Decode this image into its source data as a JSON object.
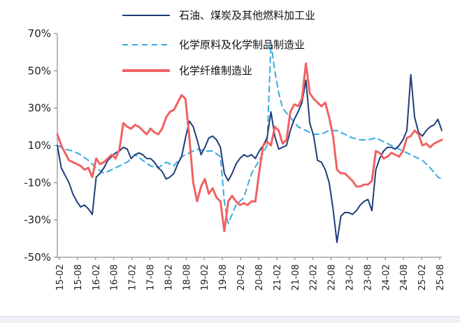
{
  "chart_data": {
    "type": "line",
    "title": "",
    "xlabel": "",
    "ylabel": "",
    "ylim": [
      -50,
      70
    ],
    "y_ticks": [
      "70%",
      "50%",
      "30%",
      "10%",
      "-10%",
      "-30%",
      "-50%"
    ],
    "y_tick_values": [
      70,
      50,
      30,
      10,
      -10,
      -30,
      -50
    ],
    "x_ticks": [
      "15-02",
      "15-08",
      "16-02",
      "16-08",
      "17-02",
      "17-08",
      "18-02",
      "18-08",
      "19-02",
      "19-08",
      "20-02",
      "20-08",
      "21-02",
      "21-08",
      "22-02",
      "22-08",
      "23-02",
      "23-08",
      "24-02",
      "24-08",
      "25-02",
      "25-08"
    ],
    "grid": false,
    "legend_position": "top",
    "series": [
      {
        "name": "石油、煤炭及其他燃料加工业",
        "color": "#1f3d7a",
        "dash": "solid",
        "points": [
          [
            0,
            10
          ],
          [
            1,
            -2
          ],
          [
            2,
            -6
          ],
          [
            3,
            -10
          ],
          [
            4,
            -16
          ],
          [
            5,
            -20
          ],
          [
            6,
            -23
          ],
          [
            7,
            -22
          ],
          [
            8,
            -24
          ],
          [
            9,
            -27
          ],
          [
            10,
            -7
          ],
          [
            11,
            -5
          ],
          [
            12,
            -2
          ],
          [
            13,
            2
          ],
          [
            14,
            4
          ],
          [
            15,
            6
          ],
          [
            16,
            7
          ],
          [
            17,
            9
          ],
          [
            18,
            8
          ],
          [
            19,
            3
          ],
          [
            20,
            5
          ],
          [
            21,
            6
          ],
          [
            22,
            5
          ],
          [
            23,
            3
          ],
          [
            24,
            3
          ],
          [
            25,
            1
          ],
          [
            26,
            -2
          ],
          [
            27,
            -4
          ],
          [
            28,
            -8
          ],
          [
            29,
            -7
          ],
          [
            30,
            -5
          ],
          [
            31,
            0
          ],
          [
            32,
            4
          ],
          [
            33,
            14
          ],
          [
            34,
            23
          ],
          [
            35,
            20
          ],
          [
            36,
            13
          ],
          [
            37,
            5
          ],
          [
            38,
            9
          ],
          [
            39,
            14
          ],
          [
            40,
            15
          ],
          [
            41,
            13
          ],
          [
            42,
            9
          ],
          [
            43,
            -5
          ],
          [
            44,
            -9
          ],
          [
            45,
            -5
          ],
          [
            46,
            0
          ],
          [
            47,
            3
          ],
          [
            48,
            5
          ],
          [
            49,
            4
          ],
          [
            50,
            5
          ],
          [
            51,
            3
          ],
          [
            52,
            7
          ],
          [
            53,
            10
          ],
          [
            54,
            14
          ],
          [
            55,
            28
          ],
          [
            56,
            15
          ],
          [
            57,
            8
          ],
          [
            58,
            9
          ],
          [
            59,
            10
          ],
          [
            60,
            18
          ],
          [
            61,
            24
          ],
          [
            62,
            28
          ],
          [
            63,
            33
          ],
          [
            64,
            45
          ],
          [
            65,
            22
          ],
          [
            66,
            15
          ],
          [
            67,
            2
          ],
          [
            68,
            1
          ],
          [
            69,
            -3
          ],
          [
            70,
            -10
          ],
          [
            71,
            -24
          ],
          [
            72,
            -42
          ],
          [
            73,
            -28
          ],
          [
            74,
            -26
          ],
          [
            75,
            -26
          ],
          [
            76,
            -27
          ],
          [
            77,
            -25
          ],
          [
            78,
            -22
          ],
          [
            79,
            -20
          ],
          [
            80,
            -19
          ],
          [
            81,
            -25
          ],
          [
            82,
            -3
          ],
          [
            83,
            3
          ],
          [
            84,
            7
          ],
          [
            85,
            9
          ],
          [
            86,
            9
          ],
          [
            87,
            8
          ],
          [
            88,
            10
          ],
          [
            89,
            13
          ],
          [
            90,
            18
          ],
          [
            91,
            48
          ],
          [
            92,
            25
          ],
          [
            93,
            17
          ],
          [
            94,
            15
          ],
          [
            95,
            18
          ],
          [
            96,
            20
          ],
          [
            97,
            21
          ],
          [
            98,
            24
          ],
          [
            99,
            18
          ]
        ]
      },
      {
        "name": "化学原料及化学制品制造业",
        "color": "#3aa9e0",
        "dash": "dashed",
        "points": [
          [
            0,
            10
          ],
          [
            2,
            8
          ],
          [
            4,
            7
          ],
          [
            6,
            5
          ],
          [
            8,
            2
          ],
          [
            10,
            -2
          ],
          [
            12,
            -5
          ],
          [
            14,
            -3
          ],
          [
            16,
            -1
          ],
          [
            18,
            1
          ],
          [
            20,
            5
          ],
          [
            22,
            2
          ],
          [
            24,
            -1
          ],
          [
            26,
            -2
          ],
          [
            28,
            1
          ],
          [
            30,
            -1
          ],
          [
            32,
            4
          ],
          [
            34,
            6
          ],
          [
            36,
            8
          ],
          [
            38,
            7
          ],
          [
            40,
            7
          ],
          [
            42,
            4
          ],
          [
            43,
            -20
          ],
          [
            44,
            -32
          ],
          [
            46,
            -22
          ],
          [
            48,
            -18
          ],
          [
            50,
            -5
          ],
          [
            52,
            2
          ],
          [
            54,
            10
          ],
          [
            55,
            65
          ],
          [
            56,
            50
          ],
          [
            57,
            38
          ],
          [
            58,
            30
          ],
          [
            60,
            25
          ],
          [
            62,
            20
          ],
          [
            64,
            18
          ],
          [
            66,
            16
          ],
          [
            68,
            16
          ],
          [
            70,
            18
          ],
          [
            72,
            18
          ],
          [
            74,
            16
          ],
          [
            76,
            14
          ],
          [
            78,
            13
          ],
          [
            80,
            13
          ],
          [
            82,
            14
          ],
          [
            84,
            12
          ],
          [
            86,
            10
          ],
          [
            88,
            8
          ],
          [
            90,
            6
          ],
          [
            92,
            4
          ],
          [
            94,
            2
          ],
          [
            96,
            -2
          ],
          [
            98,
            -7
          ],
          [
            99,
            -8
          ]
        ]
      },
      {
        "name": "化学纤维制造业",
        "color": "#f06262",
        "dash": "solid",
        "points": [
          [
            0,
            16
          ],
          [
            1,
            10
          ],
          [
            2,
            6
          ],
          [
            3,
            2
          ],
          [
            4,
            1
          ],
          [
            5,
            0
          ],
          [
            6,
            -1
          ],
          [
            7,
            -3
          ],
          [
            8,
            -2
          ],
          [
            9,
            -7
          ],
          [
            10,
            3
          ],
          [
            11,
            0
          ],
          [
            12,
            1
          ],
          [
            13,
            3
          ],
          [
            14,
            5
          ],
          [
            15,
            3
          ],
          [
            16,
            8
          ],
          [
            17,
            22
          ],
          [
            18,
            20
          ],
          [
            19,
            19
          ],
          [
            20,
            21
          ],
          [
            21,
            20
          ],
          [
            22,
            18
          ],
          [
            23,
            16
          ],
          [
            24,
            19
          ],
          [
            25,
            17
          ],
          [
            26,
            16
          ],
          [
            27,
            19
          ],
          [
            28,
            25
          ],
          [
            29,
            28
          ],
          [
            30,
            29
          ],
          [
            31,
            33
          ],
          [
            32,
            37
          ],
          [
            33,
            35
          ],
          [
            34,
            14
          ],
          [
            35,
            -10
          ],
          [
            36,
            -20
          ],
          [
            37,
            -12
          ],
          [
            38,
            -8
          ],
          [
            39,
            -16
          ],
          [
            40,
            -13
          ],
          [
            41,
            -18
          ],
          [
            42,
            -20
          ],
          [
            43,
            -36
          ],
          [
            44,
            -20
          ],
          [
            45,
            -17
          ],
          [
            46,
            -20
          ],
          [
            47,
            -22
          ],
          [
            48,
            -21
          ],
          [
            49,
            -22
          ],
          [
            50,
            -20
          ],
          [
            51,
            -20
          ],
          [
            52,
            -4
          ],
          [
            53,
            10
          ],
          [
            54,
            12
          ],
          [
            55,
            10
          ],
          [
            56,
            20
          ],
          [
            57,
            18
          ],
          [
            58,
            11
          ],
          [
            59,
            13
          ],
          [
            60,
            28
          ],
          [
            61,
            32
          ],
          [
            62,
            31
          ],
          [
            63,
            35
          ],
          [
            64,
            54
          ],
          [
            65,
            38
          ],
          [
            66,
            35
          ],
          [
            67,
            33
          ],
          [
            68,
            31
          ],
          [
            69,
            33
          ],
          [
            70,
            25
          ],
          [
            71,
            15
          ],
          [
            72,
            -3
          ],
          [
            73,
            -5
          ],
          [
            74,
            -5
          ],
          [
            75,
            -7
          ],
          [
            76,
            -9
          ],
          [
            77,
            -12
          ],
          [
            78,
            -12
          ],
          [
            79,
            -11
          ],
          [
            80,
            -11
          ],
          [
            81,
            -9
          ],
          [
            82,
            7
          ],
          [
            83,
            6
          ],
          [
            84,
            3
          ],
          [
            85,
            4
          ],
          [
            86,
            6
          ],
          [
            87,
            5
          ],
          [
            88,
            4
          ],
          [
            89,
            7
          ],
          [
            90,
            14
          ],
          [
            91,
            15
          ],
          [
            92,
            18
          ],
          [
            93,
            16
          ],
          [
            94,
            10
          ],
          [
            95,
            11
          ],
          [
            96,
            9
          ],
          [
            97,
            11
          ],
          [
            98,
            12
          ],
          [
            99,
            13
          ]
        ]
      }
    ]
  }
}
